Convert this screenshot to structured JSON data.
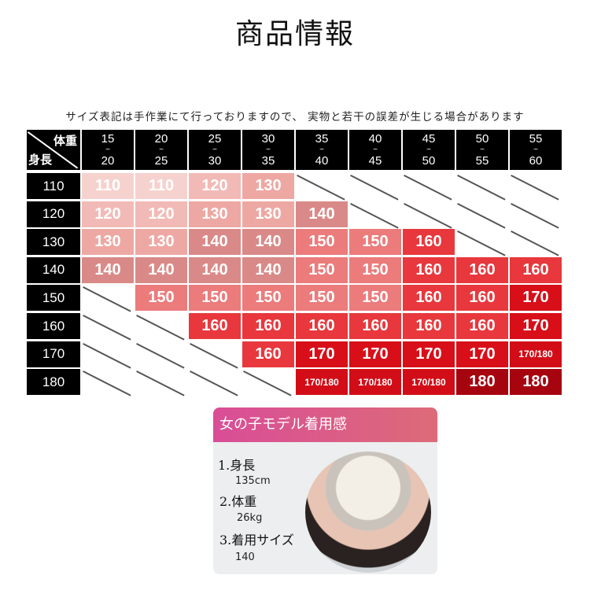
{
  "title": "商品情報",
  "note": "サイズ表記は手作業にて行っておりますので、 実物と若干の誤差が生じる場合があります",
  "table": {
    "corner_top": "体重",
    "corner_bottom": "身長",
    "weights": [
      [
        "15",
        "20"
      ],
      [
        "20",
        "25"
      ],
      [
        "25",
        "30"
      ],
      [
        "30",
        "35"
      ],
      [
        "35",
        "40"
      ],
      [
        "40",
        "45"
      ],
      [
        "45",
        "50"
      ],
      [
        "50",
        "55"
      ],
      [
        "55",
        "60"
      ]
    ],
    "tilde": "~",
    "heights": [
      "110",
      "120",
      "130",
      "140",
      "150",
      "160",
      "170",
      "180"
    ],
    "rows": [
      [
        "110",
        "110",
        "120",
        "130",
        null,
        null,
        null,
        null,
        null
      ],
      [
        "120",
        "120",
        "130",
        "130",
        "140",
        null,
        null,
        null,
        null
      ],
      [
        "130",
        "130",
        "140",
        "140",
        "150",
        "150",
        "160",
        null,
        null
      ],
      [
        "140",
        "140",
        "140",
        "140",
        "150",
        "150",
        "160",
        "160",
        "160"
      ],
      [
        null,
        "150",
        "150",
        "150",
        "150",
        "150",
        "160",
        "160",
        "170"
      ],
      [
        null,
        null,
        "160",
        "160",
        "160",
        "160",
        "160",
        "160",
        "170"
      ],
      [
        null,
        null,
        null,
        "160",
        "170",
        "170",
        "170",
        "170",
        "170/180"
      ],
      [
        null,
        null,
        null,
        null,
        "170/180",
        "170/180",
        "170/180",
        "180",
        "180"
      ]
    ],
    "colors": {
      "110": "#f6d2ce",
      "120": "#f2bab6",
      "130": "#eea8a3",
      "140": "#d98a88",
      "150": "#ec7b7c",
      "160": "#e8383d",
      "170": "#d80f19",
      "170/180": "#d20d17",
      "180": "#a60510"
    }
  },
  "model_card": {
    "heading": "女の子モデル着用感",
    "items": [
      {
        "label": "1.身長",
        "value": "135cm"
      },
      {
        "label": "2.体重",
        "value": "26kg"
      },
      {
        "label": "3.着用サイズ",
        "value": "140"
      }
    ]
  }
}
